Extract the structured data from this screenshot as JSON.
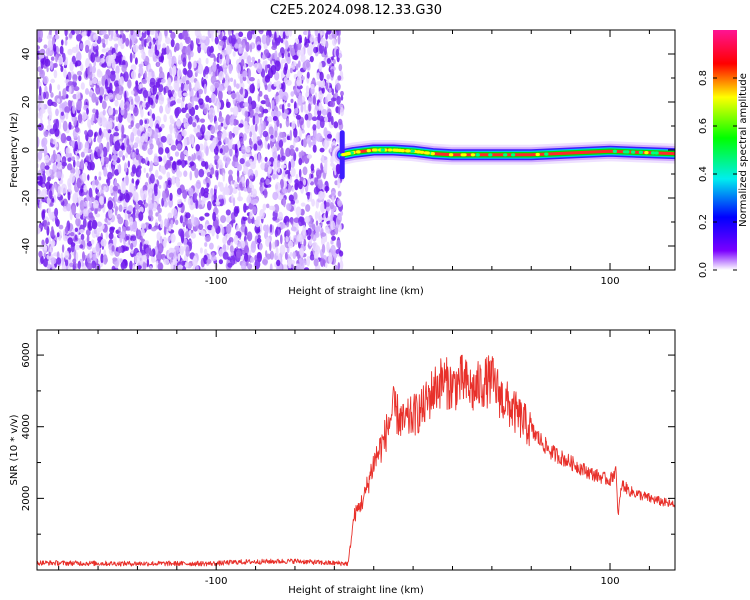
{
  "title": "C2E5.2024.098.12.33.G30",
  "chart_data": [
    {
      "type": "heatmap",
      "xlabel": "Height of straight line (km)",
      "ylabel": "Frequency (Hz)",
      "xlim": [
        -191,
        133
      ],
      "ylim": [
        -50,
        50
      ],
      "x_ticks": [
        -100,
        100
      ],
      "y_ticks": [
        40,
        20,
        0,
        -20,
        -40
      ],
      "noise_region_x": [
        -191,
        -36
      ],
      "signal_track": [
        {
          "x": -36,
          "y": -2.0
        },
        {
          "x": -30,
          "y": -1.0
        },
        {
          "x": -20,
          "y": 0.0
        },
        {
          "x": -10,
          "y": 0.0
        },
        {
          "x": 0,
          "y": -0.5
        },
        {
          "x": 10,
          "y": -1.5
        },
        {
          "x": 20,
          "y": -2.0
        },
        {
          "x": 60,
          "y": -2.0
        },
        {
          "x": 100,
          "y": -0.5
        },
        {
          "x": 115,
          "y": -1.0
        },
        {
          "x": 133,
          "y": -1.5
        }
      ],
      "colorbar": {
        "label": "Normalized spectral amplitude",
        "range": [
          0,
          1
        ],
        "ticks": [
          "0.0",
          "0.2",
          "0.4",
          "0.6",
          "0.8"
        ],
        "colormap": "rainbow (purple to red)"
      }
    },
    {
      "type": "line",
      "xlabel": "Height of straight line (km)",
      "ylabel": "SNR (10 * v/v)",
      "xlim": [
        -191,
        133
      ],
      "ylim": [
        0,
        6700
      ],
      "x_ticks": [
        -100,
        100
      ],
      "y_ticks": [
        2000,
        4000,
        6000
      ],
      "color": "#e8302a",
      "series": [
        {
          "x": [
            -191,
            -150,
            -100,
            -90,
            -60,
            -45,
            -33,
            -30,
            -25,
            -20,
            -15,
            -10,
            -5,
            0,
            5,
            10,
            15,
            20,
            25,
            30,
            35,
            40,
            45,
            50,
            55,
            60,
            70,
            80,
            90,
            100,
            103,
            104,
            106,
            110,
            120,
            133
          ],
          "y": [
            200,
            180,
            180,
            220,
            250,
            200,
            180,
            1500,
            2000,
            3000,
            3600,
            4500,
            4100,
            4300,
            4500,
            5000,
            5300,
            5100,
            5300,
            5000,
            5200,
            5300,
            4800,
            4500,
            4200,
            3900,
            3300,
            3000,
            2700,
            2500,
            2800,
            1500,
            2400,
            2200,
            2000,
            1800
          ]
        }
      ]
    }
  ]
}
